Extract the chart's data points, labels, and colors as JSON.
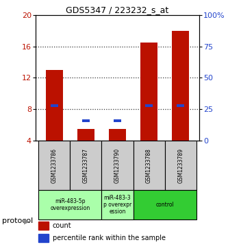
{
  "title": "GDS5347 / 223232_s_at",
  "samples": [
    "GSM1233786",
    "GSM1233787",
    "GSM1233790",
    "GSM1233788",
    "GSM1233789"
  ],
  "count_values": [
    13.0,
    5.5,
    5.5,
    16.5,
    18.0
  ],
  "percentile_values": [
    8.5,
    6.5,
    6.5,
    8.5,
    8.5
  ],
  "ylim_left": [
    4,
    20
  ],
  "ylim_right": [
    0,
    100
  ],
  "yticks_left": [
    4,
    8,
    12,
    16,
    20
  ],
  "yticks_right": [
    0,
    25,
    50,
    75,
    100
  ],
  "ytick_labels_right": [
    "0",
    "25",
    "50",
    "75",
    "100%"
  ],
  "bar_color_red": "#bb1100",
  "bar_color_blue": "#2244cc",
  "bar_width": 0.55,
  "blue_bar_width": 0.25,
  "blue_bar_height": 0.35,
  "protocol_label": "protocol",
  "legend_count": "count",
  "legend_percentile": "percentile rank within the sample",
  "grid_color": "#333333",
  "sample_box_color": "#cccccc",
  "proto_light_green": "#aaffaa",
  "proto_dark_green": "#33cc33",
  "fig_width": 3.33,
  "fig_height": 3.63,
  "dpi": 100
}
